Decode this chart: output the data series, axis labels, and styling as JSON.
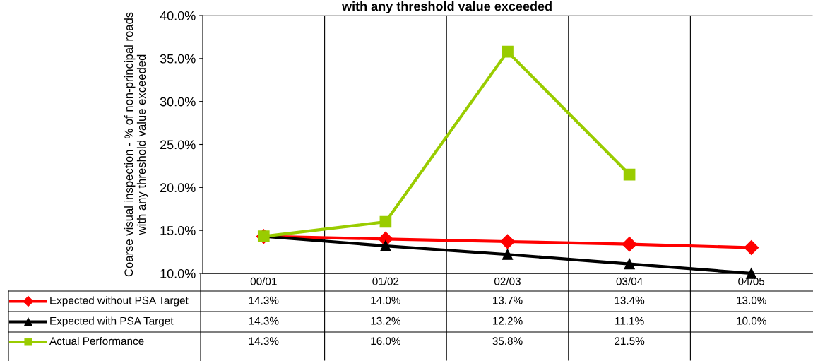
{
  "chart_data": {
    "type": "line",
    "title": "with any threshold value exceeded",
    "ylabel": "Coarse visual inspection - % of non-principal roads with any threshold value exceeded",
    "categories": [
      "00/01",
      "01/02",
      "02/03",
      "03/04",
      "04/05"
    ],
    "series": [
      {
        "name": "Expected without PSA Target",
        "color": "#ff0000",
        "marker": "diamond",
        "values": [
          14.3,
          14.0,
          13.7,
          13.4,
          13.0
        ],
        "value_labels": [
          "14.3%",
          "14.0%",
          "13.7%",
          "13.4%",
          "13.0%"
        ]
      },
      {
        "name": "Expected with PSA Target",
        "color": "#000000",
        "marker": "triangle",
        "values": [
          14.3,
          13.2,
          12.2,
          11.1,
          10.0
        ],
        "value_labels": [
          "14.3%",
          "13.2%",
          "12.2%",
          "11.1%",
          "10.0%"
        ]
      },
      {
        "name": "Actual Performance",
        "color": "#99cc00",
        "marker": "square",
        "values": [
          14.3,
          16.0,
          35.8,
          21.5,
          null
        ],
        "value_labels": [
          "14.3%",
          "16.0%",
          "35.8%",
          "21.5%",
          null
        ]
      }
    ],
    "ylim": [
      10,
      40
    ],
    "yticks": [
      {
        "value": 10,
        "label": "10.0%"
      },
      {
        "value": 15,
        "label": "15.0%"
      },
      {
        "value": 20,
        "label": "20.0%"
      },
      {
        "value": 25,
        "label": "25.0%"
      },
      {
        "value": 30,
        "label": "30.0%"
      },
      {
        "value": 35,
        "label": "35.0%"
      },
      {
        "value": 40,
        "label": "40.0%"
      }
    ],
    "grid": false,
    "legend": "bottom left",
    "line_style": "solid"
  }
}
